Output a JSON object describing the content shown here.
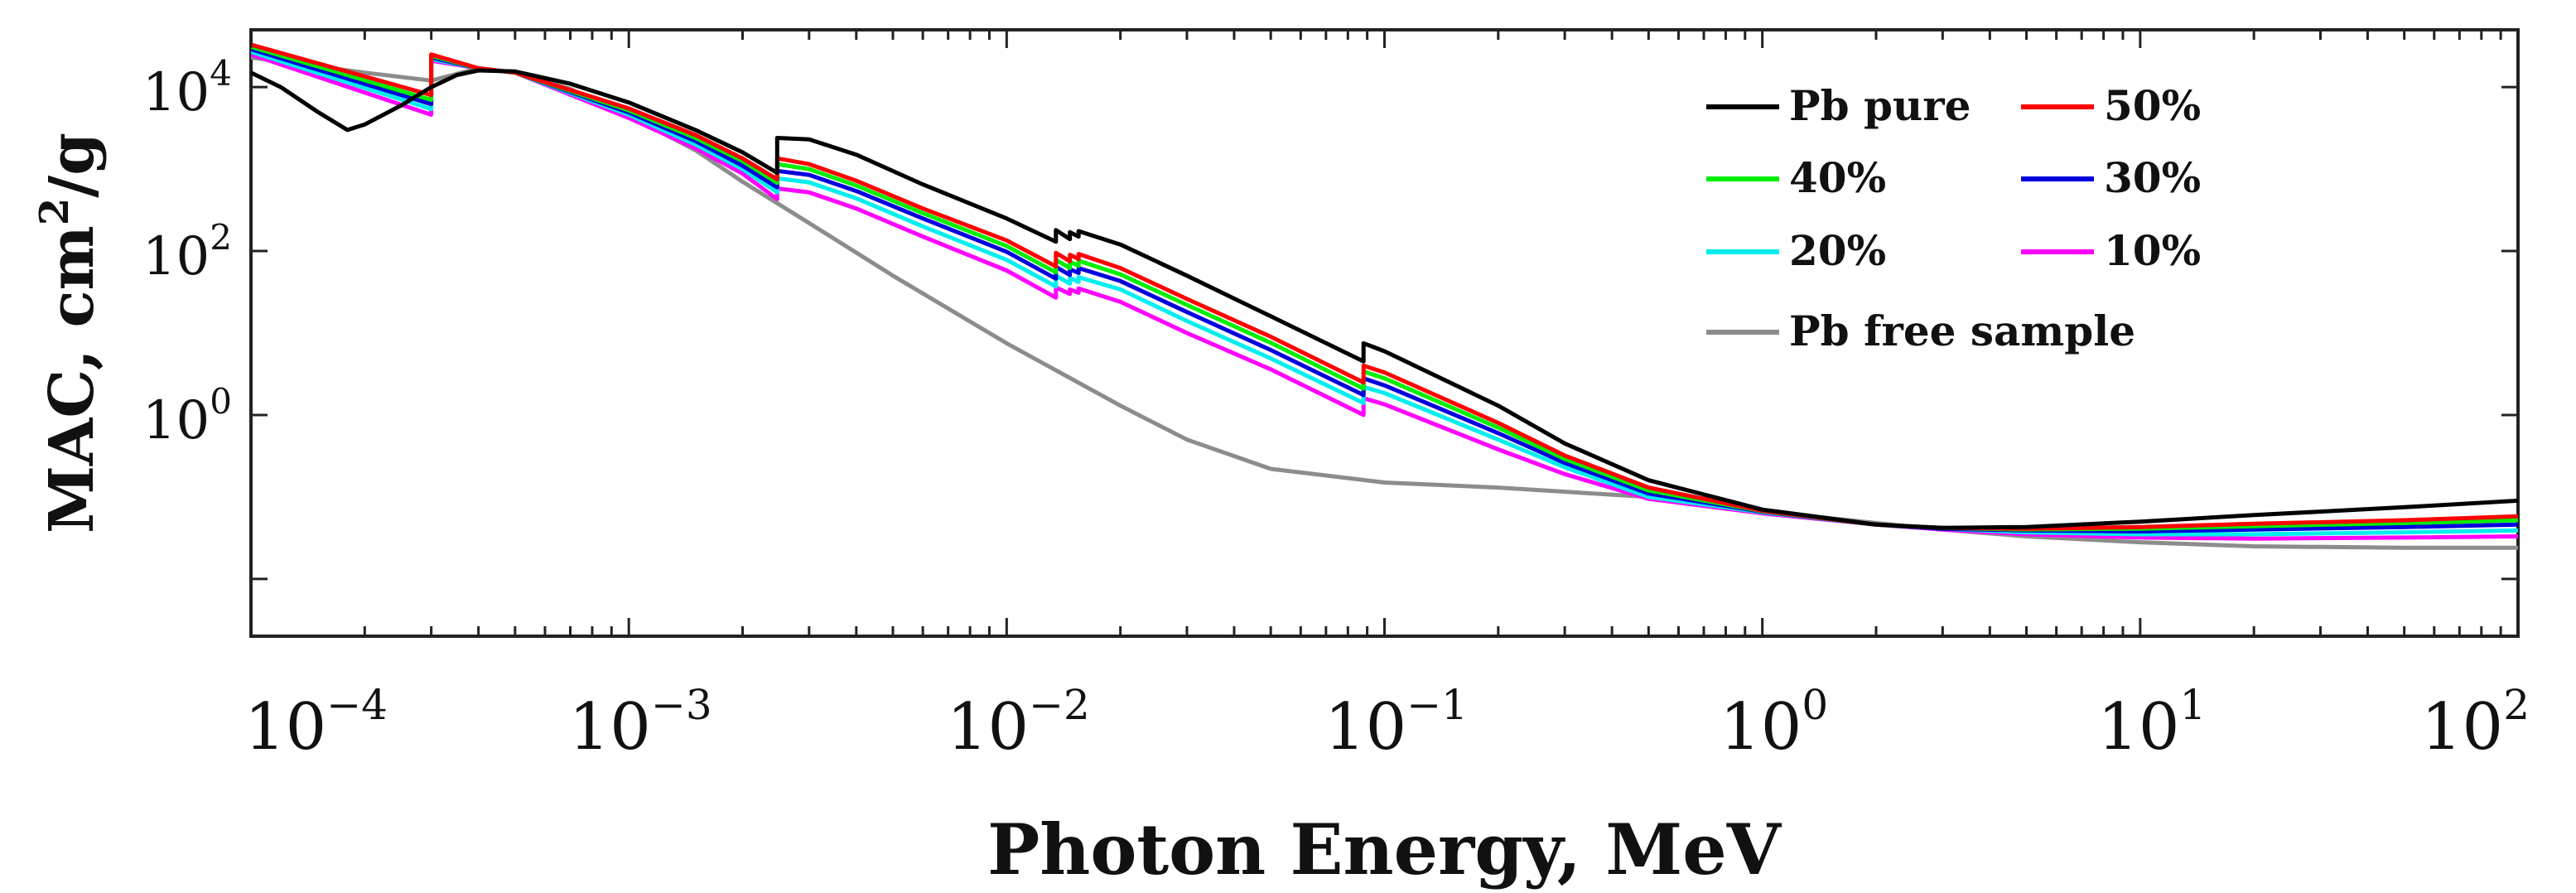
{
  "chart_data": {
    "type": "line",
    "x_scale": "log",
    "y_scale": "log",
    "xlabel": "Photon Energy, MeV",
    "ylabel": {
      "prefix": "MAC, cm",
      "sup": "2",
      "suffix": "/g"
    },
    "xlim": [
      0.0001,
      100
    ],
    "ylim": [
      0.002,
      50000
    ],
    "grid": false,
    "legend_position": "top-right",
    "x_ticks": [
      {
        "value": 0.0001,
        "base": "10",
        "exp": "−4"
      },
      {
        "value": 0.001,
        "base": "10",
        "exp": "−3"
      },
      {
        "value": 0.01,
        "base": "10",
        "exp": "−2"
      },
      {
        "value": 0.1,
        "base": "10",
        "exp": "−1"
      },
      {
        "value": 1,
        "base": "10",
        "exp": "0"
      },
      {
        "value": 10,
        "base": "10",
        "exp": "1"
      },
      {
        "value": 100,
        "base": "10",
        "exp": "2"
      }
    ],
    "y_ticks": [
      {
        "value": 1,
        "base": "10",
        "exp": "0"
      },
      {
        "value": 100,
        "base": "10",
        "exp": "2"
      },
      {
        "value": 10000,
        "base": "10",
        "exp": "4"
      }
    ],
    "series": [
      {
        "name": "Pb pure",
        "color": "#000000",
        "points": [
          [
            0.0001,
            15000
          ],
          [
            0.00012,
            10000
          ],
          [
            0.00015,
            5000
          ],
          [
            0.00018,
            3000
          ],
          [
            0.0002,
            3500
          ],
          [
            0.00025,
            6000
          ],
          [
            0.0003,
            10000
          ],
          [
            0.00035,
            14000
          ],
          [
            0.0004,
            16000
          ],
          [
            0.0005,
            15500
          ],
          [
            0.0007,
            11000
          ],
          [
            0.001,
            6500
          ],
          [
            0.0015,
            3000
          ],
          [
            0.002,
            1600
          ],
          [
            0.00247,
            900
          ],
          [
            0.00247,
            2400
          ],
          [
            0.003,
            2300
          ],
          [
            0.004,
            1500
          ],
          [
            0.006,
            650
          ],
          [
            0.01,
            250
          ],
          [
            0.0135,
            130
          ],
          [
            0.0135,
            180
          ],
          [
            0.0147,
            140
          ],
          [
            0.0147,
            170
          ],
          [
            0.0155,
            150
          ],
          [
            0.0155,
            175
          ],
          [
            0.02,
            120
          ],
          [
            0.03,
            50
          ],
          [
            0.05,
            16
          ],
          [
            0.088,
            4.5
          ],
          [
            0.088,
            7.5
          ],
          [
            0.1,
            6
          ],
          [
            0.2,
            1.3
          ],
          [
            0.3,
            0.45
          ],
          [
            0.5,
            0.16
          ],
          [
            1,
            0.07
          ],
          [
            2,
            0.046
          ],
          [
            3,
            0.042
          ],
          [
            5,
            0.043
          ],
          [
            10,
            0.05
          ],
          [
            20,
            0.06
          ],
          [
            50,
            0.075
          ],
          [
            100,
            0.09
          ]
        ]
      },
      {
        "name": "50%",
        "color": "#ff0000",
        "points": [
          [
            0.0001,
            33000
          ],
          [
            0.0003,
            8000
          ],
          [
            0.0003,
            25000
          ],
          [
            0.0004,
            17000
          ],
          [
            0.0005,
            15000
          ],
          [
            0.001,
            5500
          ],
          [
            0.0015,
            2600
          ],
          [
            0.002,
            1350
          ],
          [
            0.00247,
            750
          ],
          [
            0.00247,
            1350
          ],
          [
            0.003,
            1150
          ],
          [
            0.004,
            720
          ],
          [
            0.006,
            330
          ],
          [
            0.01,
            135
          ],
          [
            0.0135,
            65
          ],
          [
            0.0135,
            95
          ],
          [
            0.0147,
            75
          ],
          [
            0.0147,
            90
          ],
          [
            0.0155,
            80
          ],
          [
            0.0155,
            92
          ],
          [
            0.02,
            62
          ],
          [
            0.03,
            26
          ],
          [
            0.05,
            9
          ],
          [
            0.088,
            2.5
          ],
          [
            0.088,
            4
          ],
          [
            0.1,
            3.3
          ],
          [
            0.2,
            0.8
          ],
          [
            0.3,
            0.32
          ],
          [
            0.5,
            0.13
          ],
          [
            1,
            0.068
          ],
          [
            2,
            0.046
          ],
          [
            3,
            0.042
          ],
          [
            5,
            0.041
          ],
          [
            10,
            0.043
          ],
          [
            20,
            0.047
          ],
          [
            50,
            0.052
          ],
          [
            100,
            0.058
          ]
        ]
      },
      {
        "name": "40%",
        "color": "#00ee00",
        "points": [
          [
            0.0001,
            31000
          ],
          [
            0.0003,
            7000
          ],
          [
            0.0003,
            24000
          ],
          [
            0.0004,
            17000
          ],
          [
            0.0005,
            15000
          ],
          [
            0.001,
            5200
          ],
          [
            0.0015,
            2400
          ],
          [
            0.002,
            1250
          ],
          [
            0.00247,
            680
          ],
          [
            0.00247,
            1150
          ],
          [
            0.003,
            1000
          ],
          [
            0.004,
            630
          ],
          [
            0.006,
            290
          ],
          [
            0.01,
            115
          ],
          [
            0.0135,
            55
          ],
          [
            0.0135,
            78
          ],
          [
            0.0147,
            62
          ],
          [
            0.0147,
            74
          ],
          [
            0.0155,
            66
          ],
          [
            0.0155,
            76
          ],
          [
            0.02,
            52
          ],
          [
            0.03,
            22
          ],
          [
            0.05,
            7.6
          ],
          [
            0.088,
            2.1
          ],
          [
            0.088,
            3.4
          ],
          [
            0.1,
            2.8
          ],
          [
            0.2,
            0.7
          ],
          [
            0.3,
            0.29
          ],
          [
            0.5,
            0.12
          ],
          [
            1,
            0.067
          ],
          [
            2,
            0.046
          ],
          [
            3,
            0.042
          ],
          [
            5,
            0.04
          ],
          [
            10,
            0.041
          ],
          [
            20,
            0.044
          ],
          [
            50,
            0.048
          ],
          [
            100,
            0.052
          ]
        ]
      },
      {
        "name": "30%",
        "color": "#0000dd",
        "points": [
          [
            0.0001,
            29000
          ],
          [
            0.0003,
            6200
          ],
          [
            0.0003,
            23000
          ],
          [
            0.0004,
            17000
          ],
          [
            0.0005,
            15000
          ],
          [
            0.001,
            4900
          ],
          [
            0.0015,
            2200
          ],
          [
            0.002,
            1100
          ],
          [
            0.00247,
            600
          ],
          [
            0.00247,
            950
          ],
          [
            0.003,
            850
          ],
          [
            0.004,
            540
          ],
          [
            0.006,
            250
          ],
          [
            0.01,
            98
          ],
          [
            0.0135,
            46
          ],
          [
            0.0135,
            64
          ],
          [
            0.0147,
            51
          ],
          [
            0.0147,
            60
          ],
          [
            0.0155,
            54
          ],
          [
            0.0155,
            62
          ],
          [
            0.02,
            43
          ],
          [
            0.03,
            18
          ],
          [
            0.05,
            6.2
          ],
          [
            0.088,
            1.75
          ],
          [
            0.088,
            2.8
          ],
          [
            0.1,
            2.3
          ],
          [
            0.2,
            0.6
          ],
          [
            0.3,
            0.26
          ],
          [
            0.5,
            0.11
          ],
          [
            1,
            0.066
          ],
          [
            2,
            0.046
          ],
          [
            3,
            0.041
          ],
          [
            5,
            0.039
          ],
          [
            10,
            0.038
          ],
          [
            20,
            0.04
          ],
          [
            50,
            0.043
          ],
          [
            100,
            0.046
          ]
        ]
      },
      {
        "name": "20%",
        "color": "#00eeee",
        "points": [
          [
            0.0001,
            27000
          ],
          [
            0.0003,
            5400
          ],
          [
            0.0003,
            22000
          ],
          [
            0.0004,
            17000
          ],
          [
            0.0005,
            15000
          ],
          [
            0.001,
            4600
          ],
          [
            0.0015,
            2000
          ],
          [
            0.002,
            1000
          ],
          [
            0.00247,
            520
          ],
          [
            0.00247,
            770
          ],
          [
            0.003,
            690
          ],
          [
            0.004,
            440
          ],
          [
            0.006,
            200
          ],
          [
            0.01,
            78
          ],
          [
            0.0135,
            37
          ],
          [
            0.0135,
            50
          ],
          [
            0.0147,
            40
          ],
          [
            0.0147,
            47
          ],
          [
            0.0155,
            42
          ],
          [
            0.0155,
            48
          ],
          [
            0.02,
            34
          ],
          [
            0.03,
            14
          ],
          [
            0.05,
            4.9
          ],
          [
            0.088,
            1.4
          ],
          [
            0.088,
            2.2
          ],
          [
            0.1,
            1.85
          ],
          [
            0.2,
            0.5
          ],
          [
            0.3,
            0.23
          ],
          [
            0.5,
            0.1
          ],
          [
            1,
            0.065
          ],
          [
            2,
            0.046
          ],
          [
            3,
            0.041
          ],
          [
            5,
            0.037
          ],
          [
            10,
            0.035
          ],
          [
            20,
            0.035
          ],
          [
            50,
            0.037
          ],
          [
            100,
            0.039
          ]
        ]
      },
      {
        "name": "10%",
        "color": "#ff00ff",
        "points": [
          [
            0.0001,
            25000
          ],
          [
            0.0003,
            4600
          ],
          [
            0.0003,
            21000
          ],
          [
            0.0004,
            17000
          ],
          [
            0.0005,
            15000
          ],
          [
            0.001,
            4200
          ],
          [
            0.0015,
            1800
          ],
          [
            0.002,
            880
          ],
          [
            0.00247,
            430
          ],
          [
            0.00247,
            580
          ],
          [
            0.003,
            520
          ],
          [
            0.004,
            330
          ],
          [
            0.006,
            150
          ],
          [
            0.01,
            58
          ],
          [
            0.0135,
            27
          ],
          [
            0.0135,
            36
          ],
          [
            0.0147,
            30
          ],
          [
            0.0147,
            34
          ],
          [
            0.0155,
            31
          ],
          [
            0.0155,
            35
          ],
          [
            0.02,
            24
          ],
          [
            0.03,
            10
          ],
          [
            0.05,
            3.6
          ],
          [
            0.088,
            1
          ],
          [
            0.088,
            1.6
          ],
          [
            0.1,
            1.35
          ],
          [
            0.2,
            0.38
          ],
          [
            0.3,
            0.19
          ],
          [
            0.5,
            0.095
          ],
          [
            1,
            0.063
          ],
          [
            2,
            0.046
          ],
          [
            3,
            0.04
          ],
          [
            5,
            0.035
          ],
          [
            10,
            0.032
          ],
          [
            20,
            0.031
          ],
          [
            50,
            0.032
          ],
          [
            100,
            0.033
          ]
        ]
      },
      {
        "name": "Pb free sample",
        "color": "#8c8c8c",
        "points": [
          [
            0.0001,
            23000
          ],
          [
            0.0002,
            15000
          ],
          [
            0.0003,
            12000
          ],
          [
            0.0004,
            17000
          ],
          [
            0.0005,
            15000
          ],
          [
            0.0007,
            9500
          ],
          [
            0.001,
            4500
          ],
          [
            0.0015,
            1700
          ],
          [
            0.002,
            700
          ],
          [
            0.003,
            220
          ],
          [
            0.005,
            50
          ],
          [
            0.01,
            7.5
          ],
          [
            0.02,
            1.3
          ],
          [
            0.03,
            0.5
          ],
          [
            0.05,
            0.22
          ],
          [
            0.1,
            0.15
          ],
          [
            0.2,
            0.13
          ],
          [
            0.5,
            0.1
          ],
          [
            1,
            0.067
          ],
          [
            2,
            0.048
          ],
          [
            3,
            0.04
          ],
          [
            5,
            0.033
          ],
          [
            10,
            0.028
          ],
          [
            20,
            0.025
          ],
          [
            50,
            0.024
          ],
          [
            100,
            0.024
          ]
        ]
      }
    ],
    "legend_order": [
      0,
      1,
      2,
      3,
      4,
      5,
      6
    ]
  }
}
